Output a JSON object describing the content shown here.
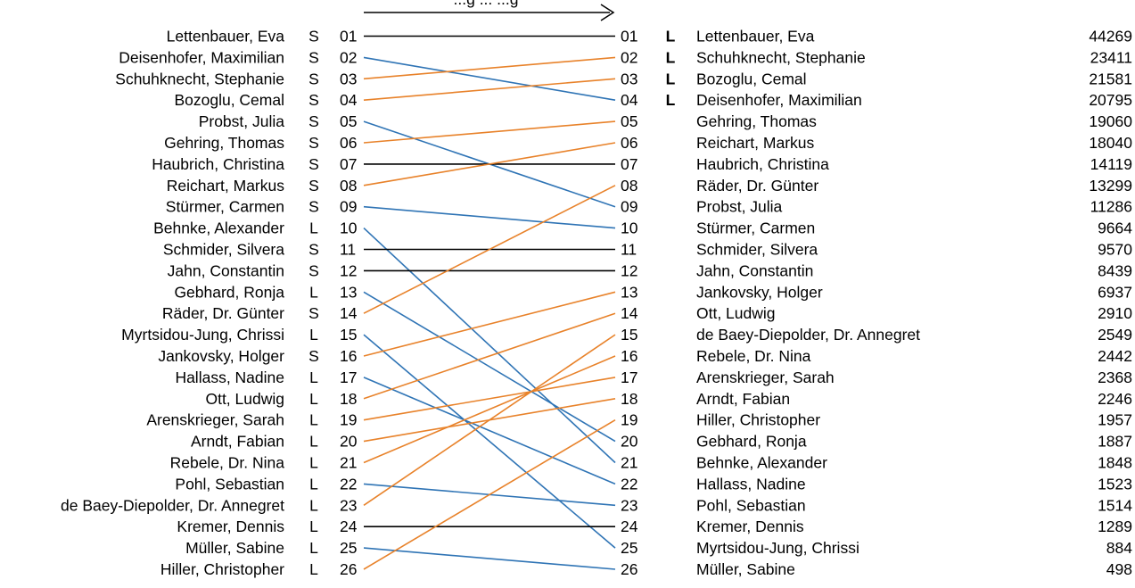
{
  "header_arrow_label": "...g ... ...g",
  "colors": {
    "unchanged": "#000000",
    "moved_down": "#2f74b5",
    "moved_up": "#e8822a"
  },
  "left_list": [
    {
      "name": "Lettenbauer, Eva",
      "mark": "S",
      "pos": "01"
    },
    {
      "name": "Deisenhofer, Maximilian",
      "mark": "S",
      "pos": "02"
    },
    {
      "name": "Schuhknecht, Stephanie",
      "mark": "S",
      "pos": "03"
    },
    {
      "name": "Bozoglu, Cemal",
      "mark": "S",
      "pos": "04"
    },
    {
      "name": "Probst, Julia",
      "mark": "S",
      "pos": "05"
    },
    {
      "name": "Gehring, Thomas",
      "mark": "S",
      "pos": "06"
    },
    {
      "name": "Haubrich, Christina",
      "mark": "S",
      "pos": "07"
    },
    {
      "name": "Reichart, Markus",
      "mark": "S",
      "pos": "08"
    },
    {
      "name": "Stürmer, Carmen",
      "mark": "S",
      "pos": "09"
    },
    {
      "name": "Behnke, Alexander",
      "mark": "L",
      "pos": "10"
    },
    {
      "name": "Schmider, Silvera",
      "mark": "S",
      "pos": "11"
    },
    {
      "name": "Jahn, Constantin",
      "mark": "S",
      "pos": "12"
    },
    {
      "name": "Gebhard, Ronja",
      "mark": "L",
      "pos": "13"
    },
    {
      "name": "Räder, Dr. Günter",
      "mark": "S",
      "pos": "14"
    },
    {
      "name": "Myrtsidou-Jung, Chrissi",
      "mark": "L",
      "pos": "15"
    },
    {
      "name": "Jankovsky, Holger",
      "mark": "S",
      "pos": "16"
    },
    {
      "name": "Hallass, Nadine",
      "mark": "L",
      "pos": "17"
    },
    {
      "name": "Ott, Ludwig",
      "mark": "L",
      "pos": "18"
    },
    {
      "name": "Arenskrieger, Sarah",
      "mark": "L",
      "pos": "19"
    },
    {
      "name": "Arndt, Fabian",
      "mark": "L",
      "pos": "20"
    },
    {
      "name": "Rebele, Dr. Nina",
      "mark": "L",
      "pos": "21"
    },
    {
      "name": "Pohl, Sebastian",
      "mark": "L",
      "pos": "22"
    },
    {
      "name": "de Baey-Diepolder, Dr. Annegret",
      "mark": "L",
      "pos": "23"
    },
    {
      "name": "Kremer, Dennis",
      "mark": "L",
      "pos": "24"
    },
    {
      "name": "Müller, Sabine",
      "mark": "L",
      "pos": "25"
    },
    {
      "name": "Hiller, Christopher",
      "mark": "L",
      "pos": "26"
    }
  ],
  "right_list": [
    {
      "pos": "01",
      "mark": "L",
      "name": "Lettenbauer, Eva",
      "votes": "44269"
    },
    {
      "pos": "02",
      "mark": "L",
      "name": "Schuhknecht, Stephanie",
      "votes": "23411"
    },
    {
      "pos": "03",
      "mark": "L",
      "name": "Bozoglu, Cemal",
      "votes": "21581"
    },
    {
      "pos": "04",
      "mark": "L",
      "name": "Deisenhofer, Maximilian",
      "votes": "20795"
    },
    {
      "pos": "05",
      "mark": "",
      "name": "Gehring, Thomas",
      "votes": "19060"
    },
    {
      "pos": "06",
      "mark": "",
      "name": "Reichart, Markus",
      "votes": "18040"
    },
    {
      "pos": "07",
      "mark": "",
      "name": "Haubrich, Christina",
      "votes": "14119"
    },
    {
      "pos": "08",
      "mark": "",
      "name": "Räder, Dr. Günter",
      "votes": "13299"
    },
    {
      "pos": "09",
      "mark": "",
      "name": "Probst, Julia",
      "votes": "11286"
    },
    {
      "pos": "10",
      "mark": "",
      "name": "Stürmer, Carmen",
      "votes": "9664"
    },
    {
      "pos": "11",
      "mark": "",
      "name": "Schmider, Silvera",
      "votes": "9570"
    },
    {
      "pos": "12",
      "mark": "",
      "name": "Jahn, Constantin",
      "votes": "8439"
    },
    {
      "pos": "13",
      "mark": "",
      "name": "Jankovsky, Holger",
      "votes": "6937"
    },
    {
      "pos": "14",
      "mark": "",
      "name": "Ott, Ludwig",
      "votes": "2910"
    },
    {
      "pos": "15",
      "mark": "",
      "name": "de Baey-Diepolder, Dr. Annegret",
      "votes": "2549"
    },
    {
      "pos": "16",
      "mark": "",
      "name": "Rebele, Dr. Nina",
      "votes": "2442"
    },
    {
      "pos": "17",
      "mark": "",
      "name": "Arenskrieger, Sarah",
      "votes": "2368"
    },
    {
      "pos": "18",
      "mark": "",
      "name": "Arndt, Fabian",
      "votes": "2246"
    },
    {
      "pos": "19",
      "mark": "",
      "name": "Hiller, Christopher",
      "votes": "1957"
    },
    {
      "pos": "20",
      "mark": "",
      "name": "Gebhard, Ronja",
      "votes": "1887"
    },
    {
      "pos": "21",
      "mark": "",
      "name": "Behnke, Alexander",
      "votes": "1848"
    },
    {
      "pos": "22",
      "mark": "",
      "name": "Hallass, Nadine",
      "votes": "1523"
    },
    {
      "pos": "23",
      "mark": "",
      "name": "Pohl, Sebastian",
      "votes": "1514"
    },
    {
      "pos": "24",
      "mark": "",
      "name": "Kremer, Dennis",
      "votes": "1289"
    },
    {
      "pos": "25",
      "mark": "",
      "name": "Myrtsidou-Jung, Chrissi",
      "votes": "884"
    },
    {
      "pos": "26",
      "mark": "",
      "name": "Müller, Sabine",
      "votes": "498"
    }
  ]
}
